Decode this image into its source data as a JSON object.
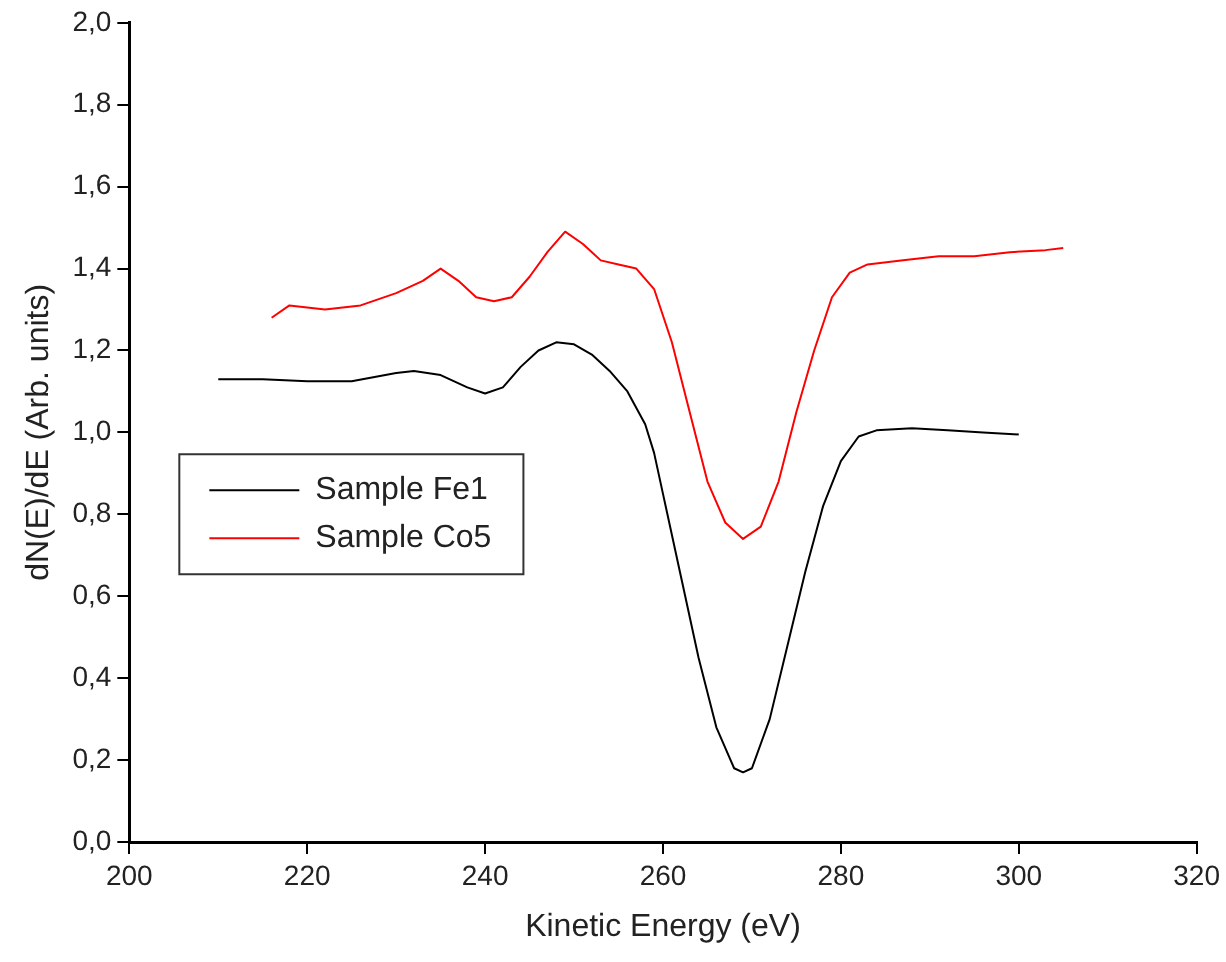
{
  "chart_data": {
    "type": "line",
    "xlabel": "Kinetic Energy (eV)",
    "ylabel": "dN(E)/dE (Arb. units)",
    "xlim": [
      200,
      320
    ],
    "xticks": [
      200,
      220,
      240,
      260,
      280,
      300,
      320
    ],
    "ylim": [
      0,
      2
    ],
    "yticks": [
      {
        "value": 0,
        "label": "0,0"
      },
      {
        "value": 0.2,
        "label": "0,2"
      },
      {
        "value": 0.4,
        "label": "0,4"
      },
      {
        "value": 0.6,
        "label": "0,6"
      },
      {
        "value": 0.8,
        "label": "0,8"
      },
      {
        "value": 1,
        "label": "1,0"
      },
      {
        "value": 1.2,
        "label": "1,2"
      },
      {
        "value": 1.4,
        "label": "1,4"
      },
      {
        "value": 1.6,
        "label": "1,6"
      },
      {
        "value": 1.8,
        "label": "1,8"
      },
      {
        "value": 2,
        "label": "2,0"
      }
    ],
    "grid": false,
    "legend": "left",
    "marker": "none",
    "line_style": "solid",
    "series": [
      {
        "name": "Sample Fe1",
        "color": "#000000",
        "x": [
          210,
          215,
          220,
          225,
          230,
          232,
          235,
          238,
          240,
          242,
          244,
          246,
          248,
          250,
          252,
          254,
          256,
          258,
          259,
          260,
          262,
          264,
          266,
          268,
          269,
          270,
          272,
          274,
          276,
          278,
          280,
          282,
          284,
          288,
          292,
          296,
          300
        ],
        "values": [
          1.13,
          1.13,
          1.125,
          1.125,
          1.145,
          1.15,
          1.14,
          1.11,
          1.095,
          1.11,
          1.16,
          1.2,
          1.22,
          1.215,
          1.19,
          1.15,
          1.1,
          1.02,
          0.95,
          0.85,
          0.65,
          0.45,
          0.28,
          0.18,
          0.17,
          0.18,
          0.3,
          0.48,
          0.66,
          0.82,
          0.93,
          0.99,
          1.005,
          1.01,
          1.005,
          1.0,
          0.995
        ]
      },
      {
        "name": "Sample Co5",
        "color": "#ff0000",
        "x": [
          216,
          218,
          222,
          226,
          230,
          233,
          235,
          237,
          239,
          241,
          243,
          245,
          247,
          249,
          251,
          253,
          255,
          257,
          259,
          261,
          263,
          265,
          267,
          269,
          271,
          273,
          275,
          277,
          279,
          281,
          283,
          287,
          291,
          295,
          299,
          303,
          305
        ],
        "values": [
          1.28,
          1.31,
          1.3,
          1.31,
          1.34,
          1.37,
          1.4,
          1.37,
          1.33,
          1.32,
          1.33,
          1.38,
          1.44,
          1.49,
          1.46,
          1.42,
          1.41,
          1.4,
          1.35,
          1.22,
          1.05,
          0.88,
          0.78,
          0.74,
          0.77,
          0.88,
          1.05,
          1.2,
          1.33,
          1.39,
          1.41,
          1.42,
          1.43,
          1.43,
          1.44,
          1.445,
          1.45
        ]
      }
    ]
  }
}
